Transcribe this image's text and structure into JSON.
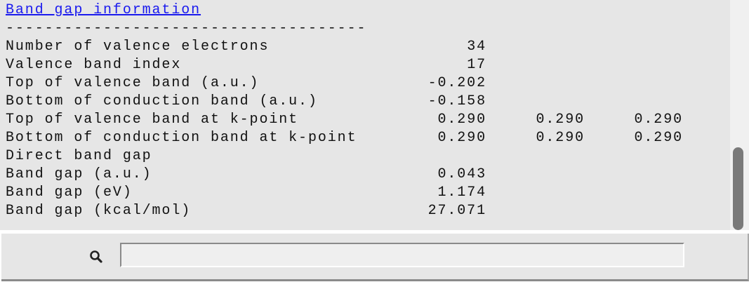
{
  "title": "Band gap information",
  "separator": "-------------------------------------",
  "rows": [
    {
      "label": "Number of valence electrons",
      "values": [
        "34"
      ]
    },
    {
      "label": "Valence band index",
      "values": [
        "17"
      ]
    },
    {
      "label": "Top of valence band (a.u.)",
      "values": [
        "-0.202"
      ]
    },
    {
      "label": "Bottom of conduction band (a.u.)",
      "values": [
        "-0.158"
      ]
    },
    {
      "label": "Top of valence band at k-point",
      "values": [
        "0.290",
        "0.290",
        "0.290"
      ]
    },
    {
      "label": "Bottom of conduction band at k-point",
      "values": [
        "0.290",
        "0.290",
        "0.290"
      ]
    },
    {
      "label": "Direct band gap",
      "values": []
    },
    {
      "label": "Band gap (a.u.)",
      "values": [
        "0.043"
      ]
    },
    {
      "label": "Band gap (eV)",
      "values": [
        "1.174"
      ]
    },
    {
      "label": "Band gap (kcal/mol)",
      "values": [
        "27.071"
      ]
    }
  ],
  "search": {
    "value": "",
    "icon": "search-icon"
  },
  "colors": {
    "link": "#1a1aee",
    "background": "#e6e6e6"
  }
}
